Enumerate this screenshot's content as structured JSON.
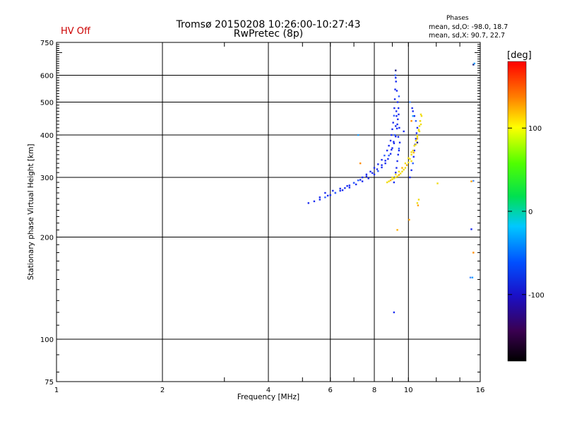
{
  "header": {
    "title_line1": "Tromsø 20150208 10:26:00-10:27:43",
    "title_line2": "RwPretec (8p)",
    "status": "HV Off",
    "phases_title": "Phases",
    "phases_o": "mean, sd,O: -98.0, 18.7",
    "phases_x": "mean, sd,X:  90.7, 22.7"
  },
  "colorbar": {
    "unit": "[deg]",
    "range": [
      -180,
      180
    ],
    "ticks": [
      100,
      0,
      -100
    ],
    "tick_labels": [
      "100",
      "0",
      "-100"
    ]
  },
  "colors": {
    "o_mode": "#1a2cf0",
    "x_mode": "#f0dc14",
    "hv_status": "#cc0000"
  },
  "chart_data": {
    "type": "scatter",
    "title": "Tromsø 20150208 10:26:00-10:27:43",
    "subtitle": "RwPretec (8p)",
    "xlabel": "Frequency [MHz]",
    "ylabel": "Stationary phase Virtual Height [km]",
    "x_scale": "log",
    "y_scale": "log",
    "xlim": [
      1,
      16
    ],
    "ylim": [
      75,
      750
    ],
    "x_ticks": [
      1,
      2,
      4,
      6,
      8,
      10,
      16
    ],
    "x_tick_labels": [
      "1",
      "2",
      "4",
      "6",
      "8",
      "10",
      "16"
    ],
    "y_ticks": [
      75,
      100,
      200,
      300,
      400,
      500,
      600,
      750
    ],
    "y_tick_labels": [
      "75",
      "100",
      "200",
      "300",
      "400",
      "500",
      "600",
      "750"
    ],
    "grid": true,
    "series": [
      {
        "x": [
          5.2,
          5.4,
          5.6,
          5.8,
          6.0,
          6.2,
          6.4,
          6.6,
          6.8,
          7.0,
          7.2,
          7.4,
          7.6,
          7.8,
          8.0,
          8.2,
          8.4,
          8.55,
          8.7,
          8.8,
          8.9,
          8.95,
          9.0,
          9.05,
          9.1,
          9.12,
          9.15,
          9.17,
          9.2,
          5.6,
          5.9,
          6.2,
          6.5,
          6.8,
          7.1,
          7.4,
          7.7,
          8.0,
          8.2,
          8.4,
          8.6,
          8.75,
          8.9,
          9.0,
          9.08,
          9.15,
          9.2,
          9.25,
          5.8,
          6.1,
          6.4,
          6.7,
          7.0,
          7.3,
          7.6,
          7.9,
          8.15,
          8.4,
          8.6,
          8.8,
          8.95,
          9.1,
          9.2,
          9.28,
          9.33,
          9.37,
          9.4,
          9.1,
          9.15,
          9.2,
          9.25,
          9.3,
          9.35,
          9.4,
          9.45,
          9.42,
          9.38,
          9.32,
          9.27,
          9.22,
          9.18,
          9.24,
          9.3,
          9.36,
          9.4,
          10.1,
          10.2,
          10.3,
          10.35,
          10.4,
          10.45,
          10.5,
          10.55,
          10.6,
          10.5,
          10.4,
          10.3,
          10.25
        ],
        "y": [
          252,
          255,
          258,
          262,
          266,
          270,
          274,
          279,
          284,
          289,
          294,
          300,
          306,
          312,
          320,
          328,
          338,
          348,
          360,
          372,
          385,
          400,
          416,
          435,
          456,
          480,
          510,
          545,
          590,
          262,
          265,
          270,
          275,
          280,
          286,
          292,
          298,
          306,
          313,
          321,
          330,
          340,
          352,
          366,
          382,
          400,
          425,
          455,
          270,
          274,
          278,
          283,
          289,
          295,
          302,
          309,
          317,
          326,
          336,
          348,
          362,
          378,
          396,
          418,
          445,
          480,
          520,
          290,
          300,
          310,
          320,
          335,
          350,
          365,
          380,
          420,
          460,
          500,
          540,
          575,
          600,
          470,
          430,
          395,
          360,
          300,
          315,
          330,
          345,
          360,
          375,
          390,
          405,
          420,
          440,
          455,
          470,
          480
        ]
      },
      {
        "x": [
          8.7,
          8.8,
          8.9,
          9.0,
          9.1,
          9.2,
          9.3,
          9.4,
          9.5,
          9.6,
          9.7,
          9.8,
          9.9,
          10.0,
          10.1,
          10.2,
          10.3,
          10.4,
          10.5,
          10.6,
          10.7,
          10.75,
          10.8,
          10.85,
          9.0,
          9.2,
          9.4,
          9.6,
          9.8,
          10.0,
          10.2,
          10.4,
          10.6,
          10.75,
          10.85,
          10.9,
          10.2,
          10.35,
          10.5,
          10.6,
          10.7,
          10.8,
          9.3,
          10.6,
          10.7,
          12.1
        ],
        "y": [
          290,
          292,
          294,
          296,
          298,
          300,
          302,
          305,
          308,
          312,
          316,
          320,
          326,
          332,
          340,
          350,
          360,
          372,
          385,
          398,
          412,
          425,
          440,
          460,
          300,
          306,
          312,
          320,
          330,
          342,
          356,
          372,
          390,
          410,
          430,
          455,
          335,
          355,
          375,
          395,
          415,
          440,
          210,
          252,
          258,
          288
        ]
      },
      {
        "x": [
          7.2,
          7.3,
          9.1,
          9.2,
          10.05,
          10.1,
          10.3,
          10.2,
          9.7,
          10.6,
          10.65,
          15.0,
          15.2,
          15.3,
          15.1,
          15.3,
          15.1,
          15.3,
          15.4
        ],
        "y": [
          400,
          330,
          120,
          620,
          225,
          500,
          455,
          440,
          410,
          380,
          248,
          152,
          152,
          180,
          211,
          645,
          292,
          293,
          650
        ]
      }
    ]
  }
}
